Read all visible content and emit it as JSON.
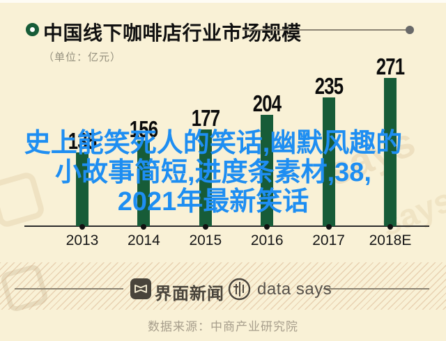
{
  "header": {
    "title": "中国线下咖啡店行业市场规模",
    "unit": "（单位：亿元）"
  },
  "chart_data": {
    "type": "bar",
    "title": "中国线下咖啡店行业市场规模",
    "unit_label": "（单位：亿元）",
    "categories": [
      "2013",
      "2014",
      "2015",
      "2016",
      "2017",
      "2018E"
    ],
    "values": [
      135,
      156,
      177,
      204,
      235,
      271
    ],
    "bar_color": "#175c38",
    "value_labels_shown": true,
    "grid": false,
    "ylim": [
      0,
      280
    ],
    "xlabel": "",
    "ylabel": ""
  },
  "overlay": {
    "lines": [
      "史上能笑死人的笑话,幽默风趣的",
      "小故事简短,进度条素材,38,",
      "2021年最新笑话"
    ],
    "color": "#1e8ef2"
  },
  "watermark": {
    "says": "says"
  },
  "footer": {
    "brand1": "界面新闻",
    "brand2": "data says",
    "source": "数据来源：中商产业研究院"
  },
  "colors": {
    "background": "#f9f1d6",
    "bar_green": "#175c38",
    "overlay_blue": "#1e8ef2",
    "footer_ink": "#49443b",
    "rule": "#8a8372"
  }
}
